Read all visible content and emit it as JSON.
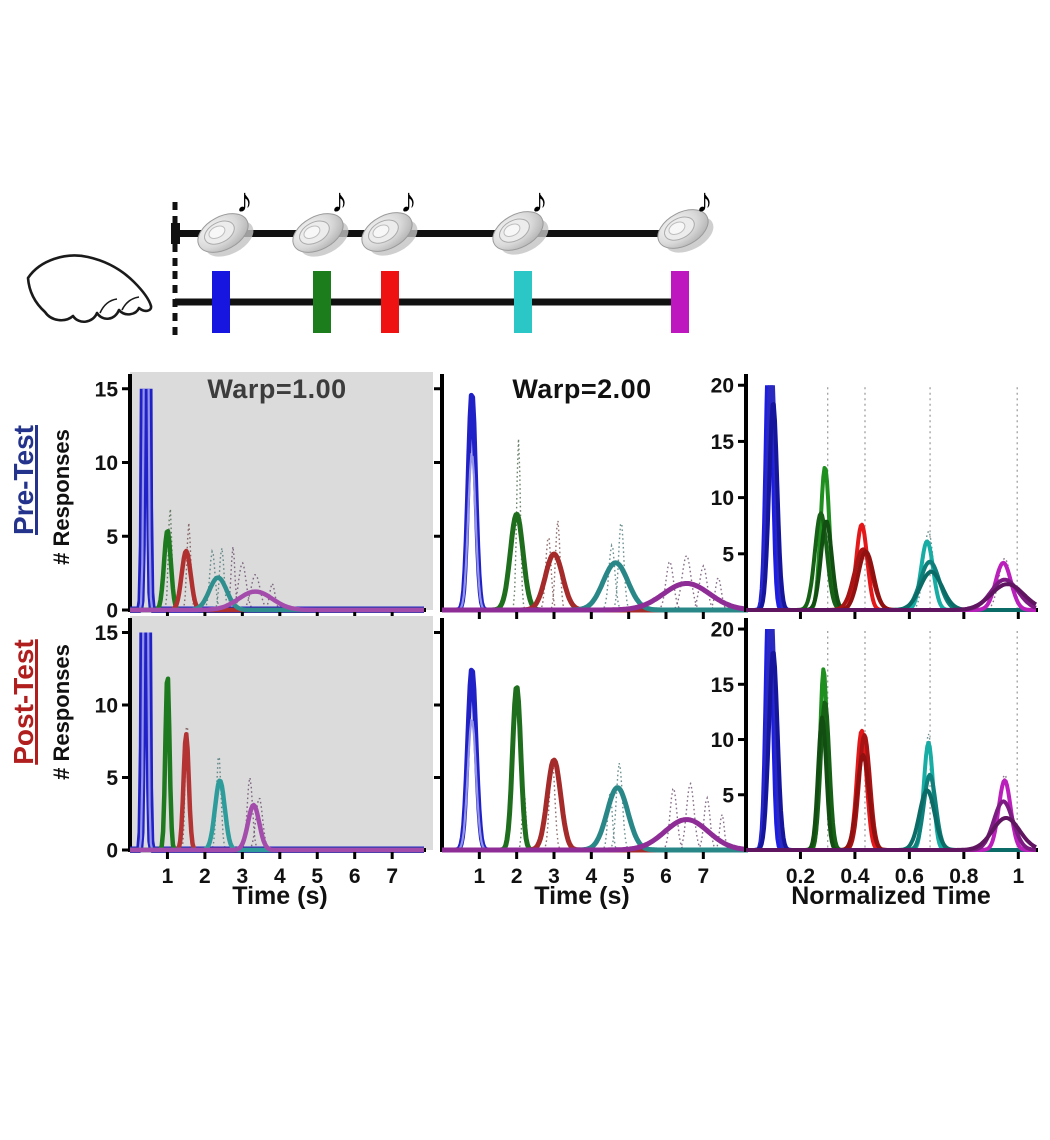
{
  "schematic": {
    "hand_icon": "pointing-hand",
    "note_glyph": "♪",
    "speaker_icon": "speaker-cymbal",
    "speaker_color": "#d9d9d9",
    "timeline_color": "#111111",
    "event_colors": [
      "#1616E0",
      "#1B7D1B",
      "#EE1212",
      "#2BC6C6",
      "#BF17BF"
    ]
  },
  "rows": [
    {
      "id": "pre",
      "label": "Pre-Test",
      "label_color": "#24348C",
      "ylabel": "# Responses"
    },
    {
      "id": "post",
      "label": "Post-Test",
      "label_color": "#B01E1E",
      "ylabel": "# Responses"
    }
  ],
  "axis_labels": {
    "time": "Time (s)",
    "normalized": "Normalized Time"
  },
  "chart_data": [
    {
      "id": "pre_warp1",
      "type": "line",
      "row": "Pre-Test",
      "title": "Warp=1.00",
      "title_color": "#3C3C3C",
      "bg": "#DBDBDB",
      "xlabel": "",
      "ylabel": "# Responses",
      "xlim": [
        0,
        7.85
      ],
      "ylim": [
        0,
        16
      ],
      "clip_top_v": 15,
      "xticks": [
        1,
        2,
        3,
        4,
        5,
        6,
        7
      ],
      "xtick_labels": [],
      "yticks": [
        0,
        5,
        10,
        15
      ],
      "ytick_labels": [
        "0",
        "5",
        "10",
        "15"
      ],
      "gridlines_x": [],
      "grid_color": "#A0A0A0",
      "series": [
        {
          "name": "event1-blue",
          "color": "#2121C8",
          "inner": "#9595E8",
          "mu": 0.43,
          "amp": 60,
          "sigma": 0.045,
          "lw": 7
        },
        {
          "name": "event2-green",
          "color": "#1E7A1E",
          "mu": 1.0,
          "amp": 5.4,
          "sigma": 0.09,
          "lw": 4.5
        },
        {
          "name": "event3-red",
          "color": "#B03030",
          "mu": 1.5,
          "amp": 4.0,
          "sigma": 0.12,
          "lw": 4.5
        },
        {
          "name": "event4-teal",
          "color": "#2F8F8F",
          "mu": 2.35,
          "amp": 2.2,
          "sigma": 0.23,
          "lw": 4.5
        },
        {
          "name": "event5-purple",
          "color": "#A44CAC",
          "mu": 3.35,
          "amp": 1.25,
          "sigma": 0.45,
          "lw": 4.5
        }
      ],
      "dotted": [
        {
          "color": "#3D5A3D",
          "mu": 1.07,
          "amp": 7.0,
          "sigma": 0.045
        },
        {
          "color": "#6B4040",
          "mu": 1.57,
          "amp": 5.9,
          "sigma": 0.05
        },
        {
          "color": "#3D6B6B",
          "mu": 2.2,
          "amp": 4.0,
          "sigma": 0.07
        },
        {
          "color": "#3D6B6B",
          "mu": 2.45,
          "amp": 4.2,
          "sigma": 0.06
        },
        {
          "color": "#5E3F60",
          "mu": 2.75,
          "amp": 4.3,
          "sigma": 0.05
        },
        {
          "color": "#5E3F60",
          "mu": 3.0,
          "amp": 3.2,
          "sigma": 0.1
        },
        {
          "color": "#5E3F60",
          "mu": 3.35,
          "amp": 2.4,
          "sigma": 0.12
        },
        {
          "color": "#5E3F60",
          "mu": 3.8,
          "amp": 1.8,
          "sigma": 0.07
        }
      ]
    },
    {
      "id": "pre_warp2",
      "type": "line",
      "row": "Pre-Test",
      "title": "Warp=2.00",
      "title_color": "#111111",
      "bg": null,
      "xlabel": "",
      "ylabel": "",
      "xlim": [
        0,
        7.5
      ],
      "ylim": [
        0,
        16
      ],
      "clip_top_v": 15,
      "xticks": [
        1,
        2,
        3,
        4,
        5,
        6,
        7
      ],
      "xtick_labels": [],
      "yticks": [
        5,
        10,
        15
      ],
      "ytick_labels": [],
      "gridlines_x": [],
      "grid_color": "#A0A0A0",
      "series": [
        {
          "name": "event1-blue",
          "color": "#2121C8",
          "inner": "#9595E8",
          "mu": 0.8,
          "amp": 14.7,
          "sigma": 0.1,
          "lw": 5
        },
        {
          "name": "event2-green",
          "color": "#1E6E1E",
          "mu": 2.0,
          "amp": 6.5,
          "sigma": 0.17,
          "lw": 5
        },
        {
          "name": "event3-red",
          "color": "#A52A2A",
          "mu": 3.0,
          "amp": 3.8,
          "sigma": 0.23,
          "lw": 5
        },
        {
          "name": "event4-teal",
          "color": "#2A8787",
          "mu": 4.65,
          "amp": 3.2,
          "sigma": 0.33,
          "lw": 5
        },
        {
          "name": "event5-purple",
          "color": "#8E2D96",
          "mu": 6.55,
          "amp": 1.8,
          "sigma": 0.62,
          "lw": 5
        }
      ],
      "dotted": [
        {
          "color": "#3D5A3D",
          "mu": 2.05,
          "amp": 11.6,
          "sigma": 0.05
        },
        {
          "color": "#6B4040",
          "mu": 2.85,
          "amp": 5.0,
          "sigma": 0.07
        },
        {
          "color": "#6B4040",
          "mu": 3.1,
          "amp": 6.1,
          "sigma": 0.06
        },
        {
          "color": "#3D6B6B",
          "mu": 4.55,
          "amp": 4.4,
          "sigma": 0.08
        },
        {
          "color": "#3D6B6B",
          "mu": 4.8,
          "amp": 6.0,
          "sigma": 0.07
        },
        {
          "color": "#5E3F60",
          "mu": 6.1,
          "amp": 3.3,
          "sigma": 0.1
        },
        {
          "color": "#5E3F60",
          "mu": 6.55,
          "amp": 3.7,
          "sigma": 0.12
        },
        {
          "color": "#5E3F60",
          "mu": 7.0,
          "amp": 3.0,
          "sigma": 0.1
        },
        {
          "color": "#5E3F60",
          "mu": 7.4,
          "amp": 2.2,
          "sigma": 0.08
        }
      ]
    },
    {
      "id": "pre_norm",
      "type": "line",
      "row": "Pre-Test",
      "title": "",
      "title_color": "#111111",
      "bg": null,
      "xlabel": "",
      "ylabel": "",
      "xlim": [
        0,
        1.065
      ],
      "ylim": [
        0,
        21
      ],
      "clip_top_v": 20,
      "xticks": [
        0.2,
        0.4,
        0.6,
        0.8,
        1
      ],
      "xtick_labels": [],
      "yticks": [
        5,
        10,
        15,
        20
      ],
      "ytick_labels": [
        "5",
        "10",
        "15",
        "20"
      ],
      "gridlines_x": [
        0.3,
        0.437,
        0.676,
        0.996
      ],
      "grid_color": "#A0A0A0",
      "series": [
        {
          "name": "blue-1",
          "color": "#1C1CE8",
          "mu": 0.085,
          "amp": 25,
          "sigma": 0.012,
          "lw": 4
        },
        {
          "name": "blue-2",
          "color": "#2A2AC0",
          "mu": 0.093,
          "amp": 22,
          "sigma": 0.014,
          "lw": 4
        },
        {
          "name": "blue-3",
          "color": "#15159E",
          "mu": 0.1,
          "amp": 18.5,
          "sigma": 0.015,
          "lw": 4
        },
        {
          "name": "green-1",
          "color": "#1F8F1F",
          "mu": 0.29,
          "amp": 12.7,
          "sigma": 0.016,
          "lw": 4
        },
        {
          "name": "green-2",
          "color": "#176117",
          "mu": 0.275,
          "amp": 8.6,
          "sigma": 0.022,
          "lw": 4
        },
        {
          "name": "green-3",
          "color": "#124E12",
          "mu": 0.295,
          "amp": 7.9,
          "sigma": 0.02,
          "lw": 4
        },
        {
          "name": "red-1",
          "color": "#E41818",
          "mu": 0.425,
          "amp": 7.6,
          "sigma": 0.02,
          "lw": 4
        },
        {
          "name": "red-2",
          "color": "#A81414",
          "mu": 0.43,
          "amp": 5.4,
          "sigma": 0.032,
          "lw": 4
        },
        {
          "name": "red-3",
          "color": "#911111",
          "mu": 0.44,
          "amp": 5.2,
          "sigma": 0.028,
          "lw": 4
        },
        {
          "name": "teal-1",
          "color": "#17ACA4",
          "mu": 0.665,
          "amp": 6.1,
          "sigma": 0.022,
          "lw": 4
        },
        {
          "name": "teal-2",
          "color": "#0E7F7A",
          "mu": 0.675,
          "amp": 4.3,
          "sigma": 0.035,
          "lw": 4
        },
        {
          "name": "teal-3",
          "color": "#0B6B66",
          "mu": 0.68,
          "amp": 3.4,
          "sigma": 0.04,
          "lw": 4
        },
        {
          "name": "purple-1",
          "color": "#BB1FBB",
          "mu": 0.945,
          "amp": 4.2,
          "sigma": 0.028,
          "lw": 4
        },
        {
          "name": "purple-2",
          "color": "#7C1C82",
          "mu": 0.95,
          "amp": 2.7,
          "sigma": 0.05,
          "lw": 4
        },
        {
          "name": "purple-3",
          "color": "#5F155F",
          "mu": 0.96,
          "amp": 2.3,
          "sigma": 0.06,
          "lw": 4
        }
      ],
      "dotted": [
        {
          "color": "#3D6B6B",
          "mu": 0.67,
          "amp": 7.0,
          "sigma": 0.018
        },
        {
          "color": "#5E3F60",
          "mu": 0.95,
          "amp": 4.6,
          "sigma": 0.022
        }
      ]
    },
    {
      "id": "post_warp1",
      "type": "line",
      "row": "Post-Test",
      "title": "",
      "title_color": "#3C3C3C",
      "bg": "#DBDBDB",
      "xlabel": "Time (s)",
      "ylabel": "# Responses",
      "xlim": [
        0,
        7.85
      ],
      "ylim": [
        0,
        16
      ],
      "clip_top_v": 15,
      "xticks": [
        1,
        2,
        3,
        4,
        5,
        6,
        7
      ],
      "xtick_labels": [
        "1",
        "2",
        "3",
        "4",
        "5",
        "6",
        "7"
      ],
      "yticks": [
        0,
        5,
        10,
        15
      ],
      "ytick_labels": [
        "0",
        "5",
        "10",
        "15"
      ],
      "gridlines_x": [],
      "grid_color": "#A0A0A0",
      "series": [
        {
          "name": "event1-blue",
          "color": "#2121C8",
          "inner": "#9595E8",
          "mu": 0.42,
          "amp": 60,
          "sigma": 0.045,
          "lw": 7
        },
        {
          "name": "event2-green",
          "color": "#1E7A1E",
          "mu": 1.0,
          "amp": 12.2,
          "sigma": 0.055,
          "lw": 4.5
        },
        {
          "name": "event3-red",
          "color": "#B43434",
          "mu": 1.5,
          "amp": 8.0,
          "sigma": 0.07,
          "lw": 4.5
        },
        {
          "name": "event4-teal",
          "color": "#2F9C9C",
          "mu": 2.4,
          "amp": 4.8,
          "sigma": 0.13,
          "lw": 4.5
        },
        {
          "name": "event5-purple",
          "color": "#A44CAC",
          "mu": 3.3,
          "amp": 3.1,
          "sigma": 0.15,
          "lw": 4.5
        }
      ],
      "dotted": [
        {
          "color": "#6B4040",
          "mu": 1.52,
          "amp": 9.0,
          "sigma": 0.045
        },
        {
          "color": "#3D6B6B",
          "mu": 2.37,
          "amp": 6.6,
          "sigma": 0.06
        },
        {
          "color": "#5E3F60",
          "mu": 3.2,
          "amp": 5.0,
          "sigma": 0.07
        },
        {
          "color": "#5E3F60",
          "mu": 3.45,
          "amp": 3.6,
          "sigma": 0.09
        }
      ]
    },
    {
      "id": "post_warp2",
      "type": "line",
      "row": "Post-Test",
      "title": "",
      "title_color": "#111111",
      "bg": null,
      "xlabel": "Time (s)",
      "ylabel": "",
      "xlim": [
        0,
        7.5
      ],
      "ylim": [
        0,
        16
      ],
      "clip_top_v": 15,
      "xticks": [
        1,
        2,
        3,
        4,
        5,
        6,
        7
      ],
      "xtick_labels": [
        "1",
        "2",
        "3",
        "4",
        "5",
        "6",
        "7"
      ],
      "yticks": [
        5,
        10,
        15
      ],
      "ytick_labels": [],
      "gridlines_x": [],
      "grid_color": "#A0A0A0",
      "series": [
        {
          "name": "event1-blue",
          "color": "#2121C8",
          "inner": "#9595E8",
          "mu": 0.8,
          "amp": 12.5,
          "sigma": 0.11,
          "lw": 5
        },
        {
          "name": "event2-green",
          "color": "#1E6E1E",
          "mu": 2.0,
          "amp": 11.3,
          "sigma": 0.11,
          "lw": 5
        },
        {
          "name": "event3-red",
          "color": "#A52A2A",
          "mu": 3.0,
          "amp": 6.2,
          "sigma": 0.18,
          "lw": 5
        },
        {
          "name": "event4-teal",
          "color": "#2A8787",
          "mu": 4.7,
          "amp": 4.3,
          "sigma": 0.28,
          "lw": 5
        },
        {
          "name": "event5-purple",
          "color": "#8E2D96",
          "mu": 6.55,
          "amp": 2.1,
          "sigma": 0.58,
          "lw": 5
        }
      ],
      "dotted": [
        {
          "color": "#3D5A3D",
          "mu": 2.2,
          "amp": 4.0,
          "sigma": 0.05
        },
        {
          "color": "#6B4040",
          "mu": 2.95,
          "amp": 6.4,
          "sigma": 0.07
        },
        {
          "color": "#3D6B6B",
          "mu": 4.5,
          "amp": 4.0,
          "sigma": 0.06
        },
        {
          "color": "#3D6B6B",
          "mu": 4.75,
          "amp": 6.0,
          "sigma": 0.08
        },
        {
          "color": "#5E3F60",
          "mu": 6.2,
          "amp": 4.3,
          "sigma": 0.09
        },
        {
          "color": "#5E3F60",
          "mu": 6.65,
          "amp": 4.6,
          "sigma": 0.1
        },
        {
          "color": "#5E3F60",
          "mu": 7.1,
          "amp": 3.6,
          "sigma": 0.08
        },
        {
          "color": "#5E3F60",
          "mu": 7.5,
          "amp": 2.5,
          "sigma": 0.06
        }
      ]
    },
    {
      "id": "post_norm",
      "type": "line",
      "row": "Post-Test",
      "title": "",
      "title_color": "#111111",
      "bg": null,
      "xlabel": "Normalized Time",
      "ylabel": "",
      "xlim": [
        0,
        1.065
      ],
      "ylim": [
        0,
        21
      ],
      "clip_top_v": 20,
      "xticks": [
        0.2,
        0.4,
        0.6,
        0.8,
        1
      ],
      "xtick_labels": [
        "0.2",
        "0.4",
        "0.6",
        "0.8",
        "1"
      ],
      "yticks": [
        5,
        10,
        15,
        20
      ],
      "ytick_labels": [
        "5",
        "10",
        "15",
        "20"
      ],
      "gridlines_x": [
        0.3,
        0.437,
        0.676,
        0.996
      ],
      "grid_color": "#A0A0A0",
      "series": [
        {
          "name": "blue-1",
          "color": "#1C1CE8",
          "mu": 0.085,
          "amp": 25,
          "sigma": 0.012,
          "lw": 4
        },
        {
          "name": "blue-2",
          "color": "#2A2AC0",
          "mu": 0.092,
          "amp": 22,
          "sigma": 0.014,
          "lw": 4
        },
        {
          "name": "blue-3",
          "color": "#15159E",
          "mu": 0.1,
          "amp": 18,
          "sigma": 0.016,
          "lw": 4
        },
        {
          "name": "green-1",
          "color": "#1F8F1F",
          "mu": 0.285,
          "amp": 16.4,
          "sigma": 0.013,
          "lw": 4
        },
        {
          "name": "green-2",
          "color": "#176117",
          "mu": 0.29,
          "amp": 13.4,
          "sigma": 0.016,
          "lw": 4
        },
        {
          "name": "green-3",
          "color": "#124E12",
          "mu": 0.28,
          "amp": 12.0,
          "sigma": 0.015,
          "lw": 4
        },
        {
          "name": "red-1",
          "color": "#E41818",
          "mu": 0.425,
          "amp": 10.8,
          "sigma": 0.018,
          "lw": 4
        },
        {
          "name": "red-2",
          "color": "#A81414",
          "mu": 0.435,
          "amp": 10.4,
          "sigma": 0.02,
          "lw": 4
        },
        {
          "name": "red-3",
          "color": "#911111",
          "mu": 0.43,
          "amp": 8.6,
          "sigma": 0.022,
          "lw": 4
        },
        {
          "name": "teal-1",
          "color": "#17ACA4",
          "mu": 0.67,
          "amp": 9.7,
          "sigma": 0.017,
          "lw": 4
        },
        {
          "name": "teal-2",
          "color": "#0E7F7A",
          "mu": 0.675,
          "amp": 6.8,
          "sigma": 0.022,
          "lw": 4
        },
        {
          "name": "teal-3",
          "color": "#0B6B66",
          "mu": 0.665,
          "amp": 5.4,
          "sigma": 0.028,
          "lw": 4
        },
        {
          "name": "purple-1",
          "color": "#BB1FBB",
          "mu": 0.95,
          "amp": 6.3,
          "sigma": 0.022,
          "lw": 4
        },
        {
          "name": "purple-2",
          "color": "#7C1C82",
          "mu": 0.945,
          "amp": 4.4,
          "sigma": 0.035,
          "lw": 4
        },
        {
          "name": "purple-3",
          "color": "#5F155F",
          "mu": 0.955,
          "amp": 2.9,
          "sigma": 0.05,
          "lw": 4
        }
      ],
      "dotted": [
        {
          "color": "#3D6B6B",
          "mu": 0.67,
          "amp": 10.5,
          "sigma": 0.015
        },
        {
          "color": "#5E3F60",
          "mu": 0.95,
          "amp": 6.8,
          "sigma": 0.02
        }
      ]
    }
  ]
}
